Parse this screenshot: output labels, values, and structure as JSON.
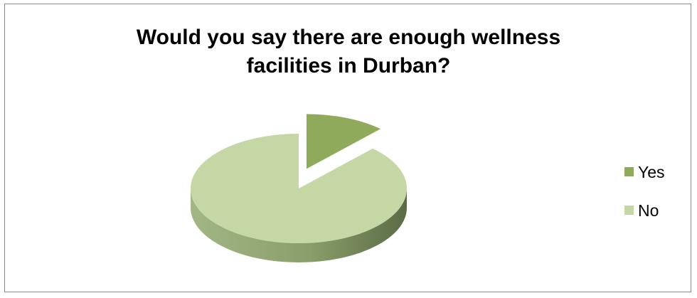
{
  "chart_data": {
    "type": "pie",
    "title_lines": [
      "Would you say there are enough wellness",
      "facilities in Durban?"
    ],
    "categories": [
      "Yes",
      "No"
    ],
    "values": [
      12,
      88
    ],
    "colors": [
      "#8faa5a",
      "#c4d7a4"
    ],
    "side_colors": [
      "#5f7a32",
      "#8a9e6a"
    ],
    "exploded": "Yes",
    "style": "3d",
    "legend_position": "right"
  }
}
